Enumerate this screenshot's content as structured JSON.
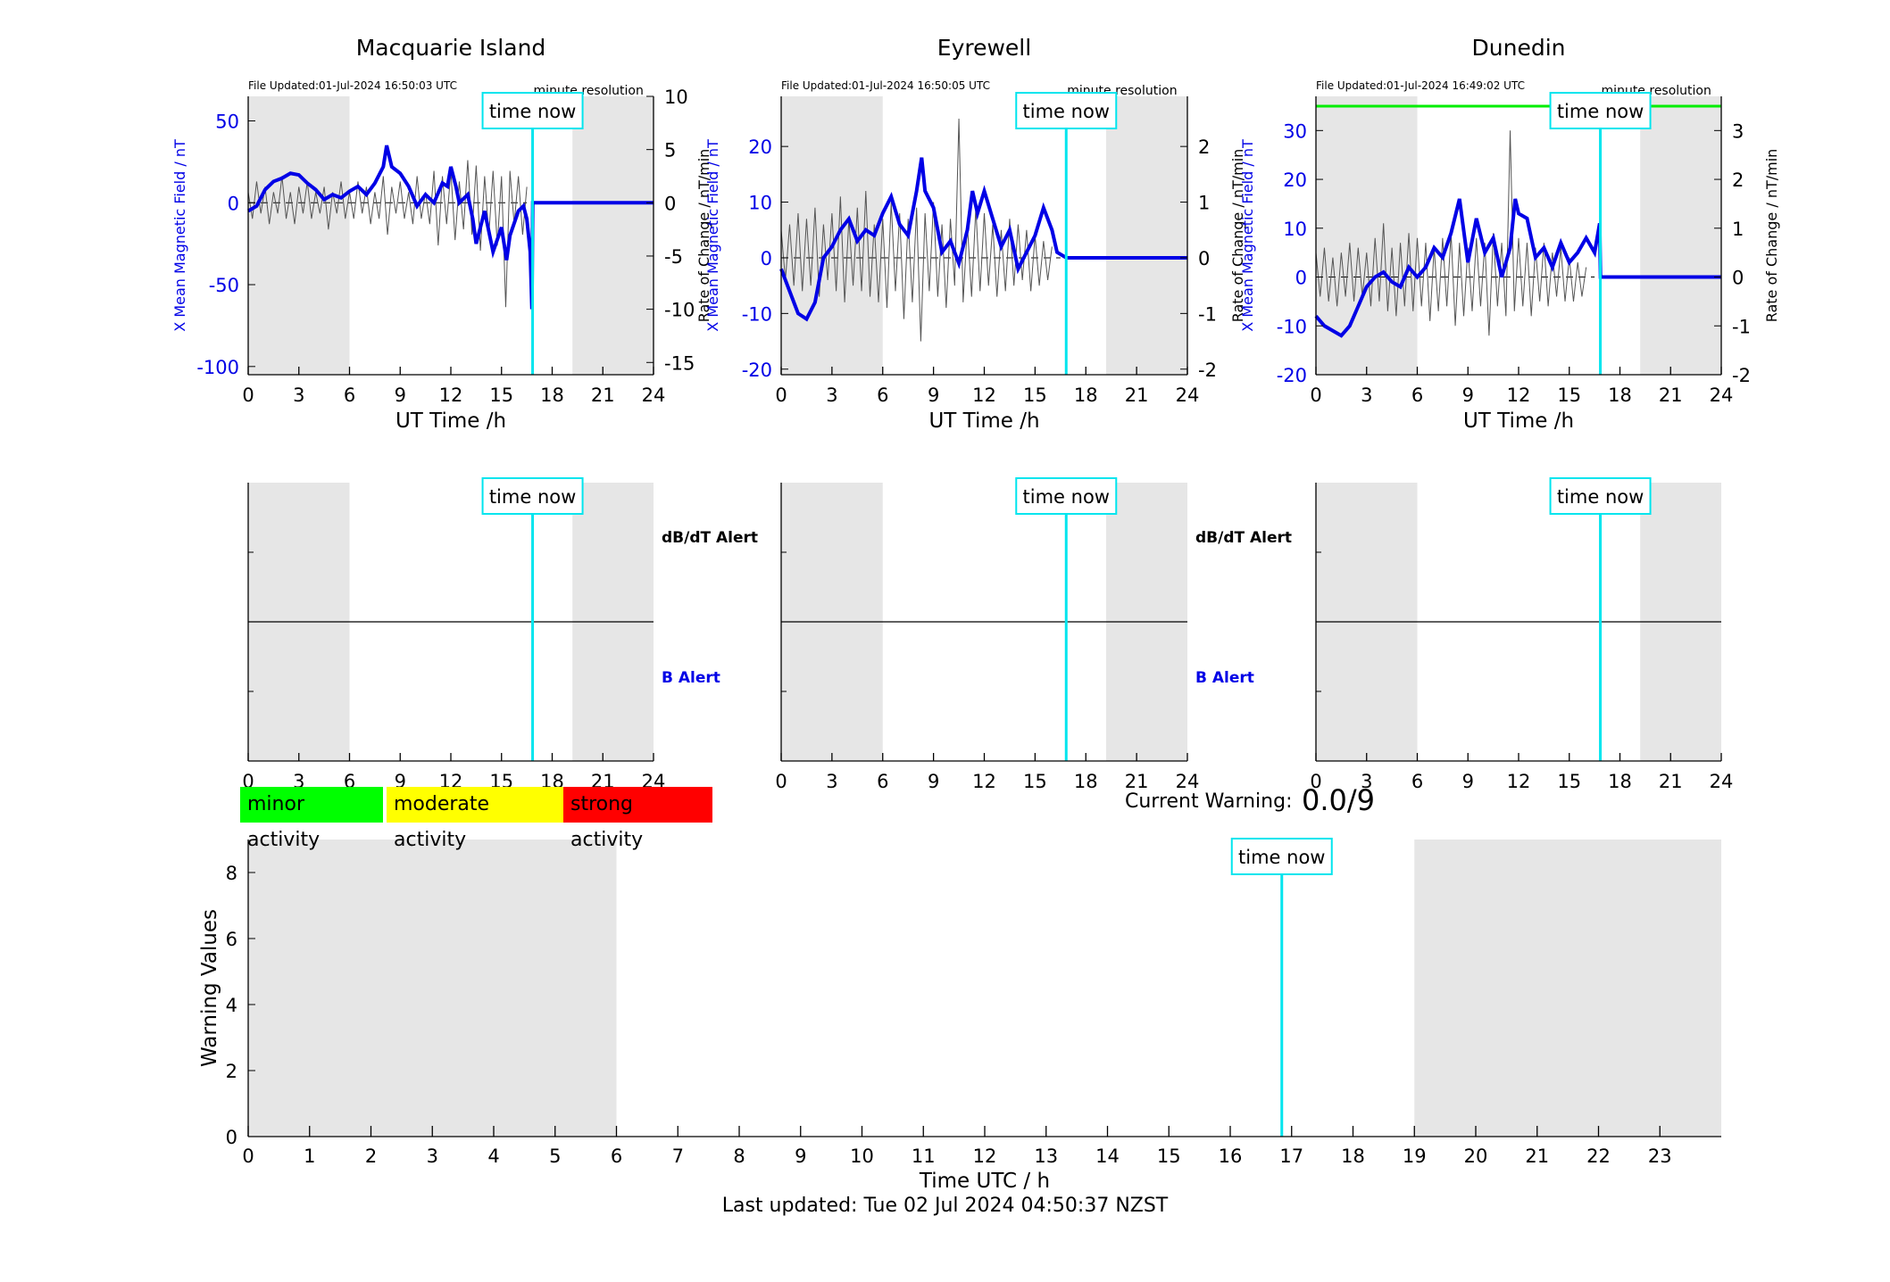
{
  "colors": {
    "field": "#0000e6",
    "rate": "#555555",
    "night_shade": "#e6e6e6",
    "time_now": "#00e5ee",
    "minor": "#00ff00",
    "moderate": "#ffff00",
    "strong": "#ff0000",
    "field_limit_line": "#00ee00"
  },
  "chart_data": [
    {
      "type": "line",
      "title": "Macquarie Island",
      "file_updated": "File Updated:01-Jul-2024 16:50:03 UTC",
      "resolution_note": "minute resolution",
      "time_now_label": "time now",
      "time_now_hour": 16.84,
      "night_shading": [
        [
          0,
          6
        ],
        [
          19.2,
          24
        ]
      ],
      "xlabel": "UT Time /h",
      "xlim": [
        0,
        24
      ],
      "xticks": [
        0,
        3,
        6,
        9,
        12,
        15,
        18,
        21,
        24
      ],
      "ylabel_left": "X Mean Magnetic Field / nT",
      "ylim_left": [
        -105,
        65
      ],
      "yticks_left": [
        -100,
        -50,
        0,
        50
      ],
      "ylabel_right": "Rate of Change / nT/min",
      "ylim_right": [
        -16.15,
        10
      ],
      "yticks_right": [
        -15,
        -10,
        -5,
        0,
        5,
        10
      ],
      "series": [
        {
          "name": "X Mean Magnetic Field",
          "axis": "left",
          "x": [
            0,
            0.5,
            1,
            1.5,
            2,
            2.5,
            3,
            3.5,
            4,
            4.5,
            5,
            5.5,
            6,
            6.5,
            7,
            7.5,
            8,
            8.2,
            8.5,
            9,
            9.5,
            10,
            10.5,
            11,
            11.5,
            11.8,
            12,
            12.3,
            12.5,
            13,
            13.3,
            13.5,
            14,
            14.3,
            14.5,
            15,
            15.3,
            15.5,
            16,
            16.3,
            16.5,
            16.7,
            16.8,
            16.85,
            24
          ],
          "y": [
            -5,
            -2,
            8,
            13,
            15,
            18,
            17,
            12,
            8,
            2,
            5,
            3,
            7,
            10,
            5,
            12,
            22,
            35,
            22,
            18,
            10,
            -2,
            5,
            0,
            12,
            10,
            22,
            10,
            0,
            5,
            -10,
            -25,
            -5,
            -20,
            -30,
            -15,
            -35,
            -20,
            -5,
            -2,
            -10,
            -30,
            -65,
            0,
            0
          ]
        },
        {
          "name": "Rate of Change",
          "axis": "right",
          "x": [
            0,
            0.25,
            0.5,
            0.75,
            1,
            1.25,
            1.5,
            1.75,
            2,
            2.25,
            2.5,
            2.75,
            3,
            3.25,
            3.5,
            3.75,
            4,
            4.25,
            4.5,
            4.75,
            5,
            5.25,
            5.5,
            5.75,
            6,
            6.25,
            6.5,
            6.75,
            7,
            7.25,
            7.5,
            7.75,
            8,
            8.25,
            8.5,
            8.75,
            9,
            9.25,
            9.5,
            9.75,
            10,
            10.25,
            10.5,
            10.75,
            11,
            11.25,
            11.5,
            11.75,
            12,
            12.25,
            12.5,
            12.75,
            13,
            13.25,
            13.5,
            13.75,
            14,
            14.25,
            14.5,
            14.75,
            15,
            15.25,
            15.5,
            15.75,
            16,
            16.25,
            16.5
          ],
          "y": [
            1,
            -1.5,
            2,
            -1,
            1.5,
            -2,
            1,
            -1,
            2.5,
            -1.5,
            1,
            -2,
            1.5,
            -1,
            2,
            -1.5,
            1,
            -1,
            1.5,
            -2.5,
            1,
            -1,
            2,
            -1.5,
            1,
            -1.5,
            2,
            -1,
            1.5,
            -2,
            1,
            -1.5,
            2.5,
            -3,
            1.5,
            -1,
            2,
            -1.5,
            1,
            -2,
            2.5,
            -1.5,
            1,
            -2,
            3,
            -4,
            2.5,
            -2,
            3,
            -3.5,
            2,
            -2.5,
            4,
            -3,
            3.5,
            -4.5,
            2.5,
            -3,
            3,
            -4,
            2.5,
            -9.8,
            3,
            -2,
            2.5,
            -3,
            1.5
          ]
        }
      ]
    },
    {
      "type": "line",
      "title": "Eyrewell",
      "file_updated": "File Updated:01-Jul-2024 16:50:05 UTC",
      "resolution_note": "minute resolution",
      "time_now_label": "time now",
      "time_now_hour": 16.84,
      "night_shading": [
        [
          0,
          6
        ],
        [
          19.2,
          24
        ]
      ],
      "xlabel": "UT Time /h",
      "xlim": [
        0,
        24
      ],
      "xticks": [
        0,
        3,
        6,
        9,
        12,
        15,
        18,
        21,
        24
      ],
      "ylabel_left": "X Mean Magnetic Field / nT",
      "ylim_left": [
        -21,
        29
      ],
      "yticks_left": [
        -20,
        -10,
        0,
        10,
        20
      ],
      "ylabel_right": "Rate of Change / nT/min",
      "ylim_right": [
        -2.1,
        2.9
      ],
      "yticks_right": [
        -2,
        -1,
        0,
        1,
        2
      ],
      "series": [
        {
          "name": "X Mean Magnetic Field",
          "axis": "left",
          "x": [
            0,
            0.5,
            1,
            1.5,
            2,
            2.5,
            3,
            3.5,
            4,
            4.5,
            5,
            5.5,
            6,
            6.5,
            7,
            7.5,
            8,
            8.3,
            8.5,
            9,
            9.5,
            10,
            10.5,
            11,
            11.3,
            11.6,
            12,
            12.5,
            13,
            13.5,
            14,
            14.5,
            15,
            15.5,
            16,
            16.3,
            16.85,
            24
          ],
          "y": [
            -2,
            -6,
            -10,
            -11,
            -8,
            0,
            2,
            5,
            7,
            3,
            5,
            4,
            8,
            11,
            6,
            4,
            12,
            18,
            12,
            9,
            1,
            3,
            -1,
            5,
            12,
            8,
            12,
            7,
            2,
            5,
            -2,
            1,
            4,
            9,
            5,
            1,
            0,
            0
          ]
        },
        {
          "name": "Rate of Change",
          "axis": "right",
          "x": [
            0,
            0.25,
            0.5,
            0.75,
            1,
            1.25,
            1.5,
            1.75,
            2,
            2.25,
            2.5,
            2.75,
            3,
            3.25,
            3.5,
            3.75,
            4,
            4.25,
            4.5,
            4.75,
            5,
            5.25,
            5.5,
            5.75,
            6,
            6.25,
            6.5,
            6.75,
            7,
            7.25,
            7.5,
            7.75,
            8,
            8.25,
            8.5,
            8.75,
            9,
            9.25,
            9.5,
            9.75,
            10,
            10.25,
            10.5,
            10.75,
            11,
            11.25,
            11.5,
            11.75,
            12,
            12.25,
            12.5,
            12.75,
            13,
            13.25,
            13.5,
            13.75,
            14,
            14.25,
            14.5,
            14.75,
            15,
            15.25,
            15.5,
            15.75,
            16
          ],
          "y": [
            0.5,
            -0.4,
            0.6,
            -0.5,
            0.8,
            -0.6,
            0.7,
            -0.5,
            0.9,
            -0.7,
            0.6,
            -0.4,
            0.8,
            -0.6,
            1.1,
            -0.8,
            0.7,
            -0.5,
            0.9,
            -0.6,
            1.2,
            -0.7,
            0.6,
            -0.8,
            0.7,
            -0.9,
            1,
            -0.6,
            0.8,
            -1.1,
            0.7,
            -0.8,
            0.9,
            -1.5,
            0.8,
            -0.6,
            1,
            -0.7,
            0.6,
            -0.9,
            0.7,
            -0.5,
            2.5,
            -0.8,
            0.6,
            -0.7,
            0.9,
            -0.6,
            0.8,
            -0.5,
            0.6,
            -0.7,
            0.5,
            -0.6,
            0.7,
            -0.5,
            0.6,
            -0.4,
            0.5,
            -0.6,
            0.4,
            -0.5,
            0.3,
            -0.4,
            0.2
          ]
        }
      ]
    },
    {
      "type": "line",
      "title": "Dunedin",
      "file_updated": "File Updated:01-Jul-2024 16:49:02 UTC",
      "resolution_note": "minute resolution",
      "time_now_label": "time now",
      "time_now_hour": 16.84,
      "night_shading": [
        [
          0,
          6
        ],
        [
          19.2,
          24
        ]
      ],
      "xlabel": "UT Time /h",
      "xlim": [
        0,
        24
      ],
      "xticks": [
        0,
        3,
        6,
        9,
        12,
        15,
        18,
        21,
        24
      ],
      "ylabel_left": "X Mean Magnetic Field / nT",
      "ylim_left": [
        -20,
        37
      ],
      "yticks_left": [
        -20,
        -10,
        0,
        10,
        20,
        30
      ],
      "ylabel_right": "Rate of Change / nT/min",
      "ylim_right": [
        -2,
        3.7
      ],
      "yticks_right": [
        -2,
        -1,
        0,
        1,
        2,
        3
      ],
      "reference_line_left": 35,
      "series": [
        {
          "name": "X Mean Magnetic Field",
          "axis": "left",
          "x": [
            0,
            0.5,
            1,
            1.5,
            2,
            2.5,
            3,
            3.5,
            4,
            4.5,
            5,
            5.5,
            6,
            6.5,
            7,
            7.5,
            8,
            8.5,
            9,
            9.5,
            10,
            10.5,
            11,
            11.5,
            11.8,
            12,
            12.5,
            13,
            13.5,
            14,
            14.5,
            15,
            15.5,
            16,
            16.5,
            16.8,
            16.85,
            24
          ],
          "y": [
            -8,
            -10,
            -11,
            -12,
            -10,
            -6,
            -2,
            0,
            1,
            -1,
            -2,
            2,
            0,
            2,
            6,
            4,
            9,
            16,
            3,
            12,
            5,
            8,
            0,
            6,
            16,
            13,
            12,
            4,
            6,
            2,
            7,
            3,
            5,
            8,
            5,
            11,
            0,
            0
          ]
        },
        {
          "name": "Rate of Change",
          "axis": "right",
          "x": [
            0,
            0.25,
            0.5,
            0.75,
            1,
            1.25,
            1.5,
            1.75,
            2,
            2.25,
            2.5,
            2.75,
            3,
            3.25,
            3.5,
            3.75,
            4,
            4.25,
            4.5,
            4.75,
            5,
            5.25,
            5.5,
            5.75,
            6,
            6.25,
            6.5,
            6.75,
            7,
            7.25,
            7.5,
            7.75,
            8,
            8.25,
            8.5,
            8.75,
            9,
            9.25,
            9.5,
            9.75,
            10,
            10.25,
            10.5,
            10.75,
            11,
            11.25,
            11.5,
            11.75,
            12,
            12.25,
            12.5,
            12.75,
            13,
            13.25,
            13.5,
            13.75,
            14,
            14.25,
            14.5,
            14.75,
            15,
            15.25,
            15.5,
            15.75,
            16
          ],
          "y": [
            0.5,
            -0.4,
            0.6,
            -0.5,
            0.4,
            -0.6,
            0.5,
            -0.4,
            0.7,
            -0.5,
            0.6,
            -0.4,
            0.5,
            -0.6,
            0.8,
            -0.5,
            1.1,
            -0.7,
            0.6,
            -0.8,
            0.7,
            -0.6,
            0.9,
            -0.7,
            0.8,
            -0.6,
            0.7,
            -0.9,
            0.6,
            -0.7,
            0.8,
            -0.6,
            0.9,
            -1,
            0.7,
            -0.8,
            0.6,
            -0.7,
            0.8,
            -0.6,
            0.7,
            -1.2,
            0.9,
            -0.6,
            0.7,
            -0.8,
            3,
            -0.7,
            0.8,
            -0.6,
            0.7,
            -0.8,
            0.6,
            -0.5,
            0.7,
            -0.6,
            0.5,
            -0.4,
            0.6,
            -0.5,
            0.4,
            -0.5,
            0.3,
            -0.4,
            0.2
          ]
        }
      ]
    },
    {
      "type": "line",
      "title": "",
      "panel": "Macquarie Island alerts",
      "time_now_label": "time now",
      "time_now_hour": 16.84,
      "night_shading": [
        [
          0,
          6
        ],
        [
          19.2,
          24
        ]
      ],
      "xlim": [
        0,
        24
      ],
      "xticks": [
        0,
        3,
        6,
        9,
        12,
        15,
        18,
        21,
        24
      ],
      "upper_band_label": "dB/dT Alert",
      "lower_band_label": "B Alert"
    },
    {
      "type": "line",
      "title": "",
      "panel": "Eyrewell alerts",
      "time_now_label": "time now",
      "time_now_hour": 16.84,
      "night_shading": [
        [
          0,
          6
        ],
        [
          19.2,
          24
        ]
      ],
      "xlim": [
        0,
        24
      ],
      "xticks": [
        0,
        3,
        6,
        9,
        12,
        15,
        18,
        21,
        24
      ],
      "upper_band_label": "dB/dT Alert",
      "lower_band_label": "B Alert"
    },
    {
      "type": "line",
      "title": "",
      "panel": "Dunedin alerts",
      "time_now_label": "time now",
      "time_now_hour": 16.84,
      "night_shading": [
        [
          0,
          6
        ],
        [
          19.2,
          24
        ]
      ],
      "xlim": [
        0,
        24
      ],
      "xticks": [
        0,
        3,
        6,
        9,
        12,
        15,
        18,
        21,
        24
      ]
    },
    {
      "type": "bar",
      "title": "",
      "panel": "warning values",
      "xlabel": "Time UTC / h",
      "ylabel": "Warning Values",
      "xlim": [
        0,
        24
      ],
      "xticks": [
        0,
        1,
        2,
        3,
        4,
        5,
        6,
        7,
        8,
        9,
        10,
        11,
        12,
        13,
        14,
        15,
        16,
        17,
        18,
        19,
        20,
        21,
        22,
        23
      ],
      "ylim": [
        0,
        9
      ],
      "yticks": [
        0,
        2,
        4,
        6,
        8
      ],
      "night_shading": [
        [
          0,
          6
        ],
        [
          19,
          24
        ]
      ],
      "time_now_label": "time now",
      "time_now_hour": 16.84,
      "values": []
    }
  ],
  "legend": {
    "minor": "minor activity",
    "moderate": "moderate activity",
    "strong": "strong activity"
  },
  "current_warning": {
    "label": "Current Warning:",
    "value": "0.0/9"
  },
  "footer": {
    "last_updated": "Last updated: Tue 02 Jul 2024 04:50:37 NZST"
  }
}
